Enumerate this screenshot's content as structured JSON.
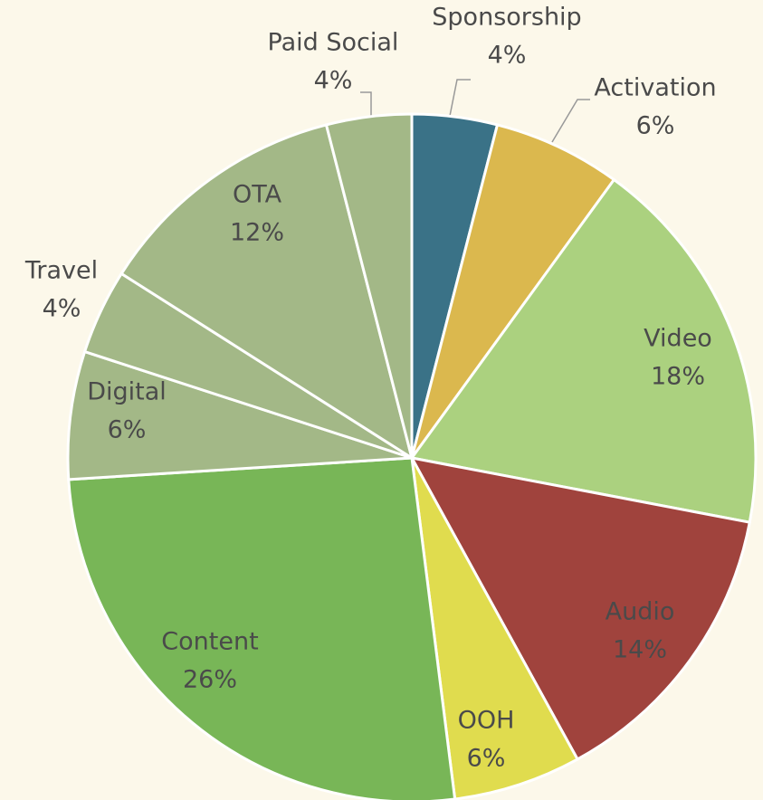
{
  "chart_data": {
    "type": "pie",
    "categories": [
      "Sponsorship",
      "Activation",
      "Video",
      "Audio",
      "OOH",
      "Content",
      "Digital",
      "Travel",
      "OTA",
      "Paid Social"
    ],
    "values": [
      4,
      6,
      18,
      14,
      6,
      26,
      6,
      4,
      12,
      4
    ],
    "value_labels": [
      "4%",
      "6%",
      "18%",
      "14%",
      "6%",
      "26%",
      "6%",
      "4%",
      "12%",
      "4%"
    ],
    "colors": [
      "#3a7287",
      "#dbb84e",
      "#abd17f",
      "#a0433d",
      "#e0dc4e",
      "#78b657",
      "#a3b887",
      "#a3b887",
      "#a3b887",
      "#a3b887"
    ]
  }
}
